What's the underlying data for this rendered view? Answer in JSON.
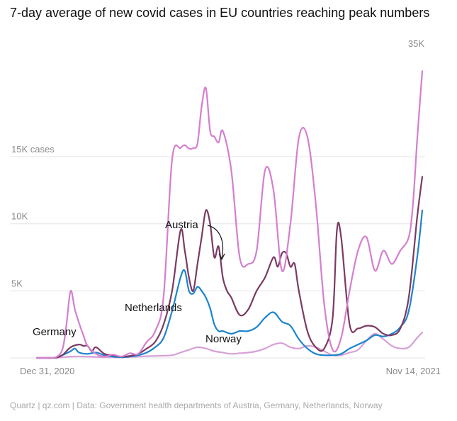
{
  "chart_data": {
    "type": "line",
    "title": "7-day average of new covid cases in EU countries reaching peak numbers",
    "source": "Quartz | qz.com | Data: Government health departments of Austria, Germany, Netherlands, Norway",
    "x_start_label": "Dec 31, 2020",
    "x_end_label": "Nov 14, 2021",
    "x_unit": "weeks since Dec 31, 2020",
    "xlim": [
      0,
      45.6
    ],
    "ylim": [
      0,
      35000
    ],
    "yticks": [
      {
        "value": 5000,
        "label": "5K"
      },
      {
        "value": 10000,
        "label": "10K"
      },
      {
        "value": 15000,
        "label": "15K cases"
      },
      {
        "value": 35000,
        "label": "35K"
      }
    ],
    "y_scale_note": "axis compressed above 15K",
    "annotations": [
      {
        "text": "Austria",
        "series": "Austria"
      },
      {
        "text": "Netherlands",
        "series": "Netherlands"
      },
      {
        "text": "Germany",
        "series": "Germany"
      },
      {
        "text": "Norway",
        "series": "Norway"
      }
    ],
    "series": [
      {
        "name": "Germany",
        "color": "#d47fcf",
        "x": [
          0,
          2,
          3,
          3.5,
          4,
          4.5,
          5,
          5.5,
          6,
          7,
          8,
          9,
          10,
          11,
          12,
          13,
          14,
          15,
          16,
          17,
          17.5,
          18,
          18.5,
          19,
          19.5,
          20,
          20.5,
          21,
          21.5,
          22,
          23,
          24,
          25,
          26,
          27,
          28,
          29,
          30,
          31,
          32,
          33,
          34,
          35,
          36,
          37,
          38,
          39,
          40,
          41,
          42,
          43,
          44,
          44.5,
          45,
          45.6
        ],
        "y": [
          0,
          0,
          600,
          2500,
          5000,
          3600,
          2600,
          1700,
          900,
          300,
          100,
          250,
          100,
          350,
          300,
          1200,
          2000,
          4600,
          14800,
          16500,
          17000,
          16400,
          16500,
          17300,
          23800,
          27000,
          19500,
          18500,
          17500,
          19500,
          14000,
          7500,
          7000,
          8000,
          14000,
          12500,
          6500,
          10000,
          18300,
          18500,
          11500,
          4000,
          600,
          1500,
          5000,
          8000,
          9000,
          6500,
          8000,
          7000,
          8000,
          9000,
          11500,
          18000,
          30000
        ]
      },
      {
        "name": "Austria",
        "color": "#7b3a63",
        "x": [
          0,
          2,
          3,
          4,
          5,
          5.5,
          6,
          6.5,
          7,
          8,
          9,
          10,
          11,
          12,
          13,
          14,
          15,
          16,
          17,
          17.5,
          18,
          18.5,
          19,
          19.5,
          20,
          20.5,
          21,
          21.5,
          22,
          22.5,
          23,
          24,
          25,
          26,
          27,
          28,
          28.5,
          29,
          29.5,
          30,
          30.5,
          31,
          32,
          33,
          34,
          35,
          35.5,
          36,
          37,
          38,
          39,
          40,
          41,
          42,
          43,
          44,
          45,
          45.6
        ],
        "y": [
          0,
          0,
          200,
          800,
          1000,
          900,
          900,
          500,
          800,
          300,
          200,
          100,
          150,
          300,
          700,
          1200,
          2500,
          5000,
          9500,
          8000,
          6000,
          5000,
          7000,
          9000,
          11000,
          10000,
          7500,
          8300,
          6000,
          5000,
          4500,
          3200,
          3600,
          5000,
          6000,
          7500,
          6800,
          7800,
          7800,
          6800,
          7000,
          5000,
          2000,
          800,
          700,
          3000,
          9500,
          9000,
          2500,
          2200,
          2400,
          2300,
          1800,
          1700,
          2200,
          4500,
          10500,
          13500
        ]
      },
      {
        "name": "Netherlands",
        "color": "#1c84cc",
        "x": [
          0,
          2,
          3,
          4,
          4.5,
          5,
          6,
          7,
          8,
          9,
          10,
          11,
          12,
          13,
          14,
          15,
          16,
          17,
          17.5,
          18,
          18.5,
          19,
          19.5,
          20,
          20.5,
          21,
          21.5,
          22,
          23,
          24,
          25,
          26,
          27,
          28,
          29,
          30,
          31,
          32,
          33,
          34,
          35,
          36,
          37,
          38,
          39,
          40,
          41,
          42,
          43,
          44,
          45,
          45.6
        ],
        "y": [
          0,
          0,
          200,
          500,
          700,
          400,
          300,
          400,
          200,
          100,
          50,
          100,
          200,
          400,
          800,
          1500,
          3500,
          6000,
          6500,
          5000,
          4800,
          5300,
          5000,
          4500,
          3700,
          2500,
          2000,
          2000,
          1800,
          2000,
          2000,
          2300,
          3000,
          3400,
          2700,
          2400,
          1400,
          700,
          300,
          200,
          200,
          300,
          700,
          1000,
          1300,
          1700,
          1600,
          1800,
          2300,
          3500,
          7500,
          11000
        ]
      },
      {
        "name": "Norway",
        "color": "#d6a0d6",
        "x": [
          0,
          2,
          4,
          6,
          8,
          10,
          12,
          14,
          16,
          17,
          18,
          19,
          20,
          21,
          22,
          23,
          24,
          25,
          26,
          27,
          28,
          29,
          30,
          31,
          32,
          33,
          34,
          35,
          36,
          37,
          38,
          39,
          40,
          41,
          42,
          43,
          44,
          45,
          45.6
        ],
        "y": [
          0,
          0,
          100,
          100,
          50,
          50,
          100,
          150,
          200,
          400,
          600,
          800,
          700,
          500,
          400,
          300,
          350,
          400,
          500,
          700,
          1000,
          1100,
          800,
          700,
          900,
          800,
          500,
          200,
          200,
          400,
          600,
          1300,
          1800,
          1400,
          900,
          700,
          800,
          1500,
          1900
        ]
      }
    ]
  }
}
